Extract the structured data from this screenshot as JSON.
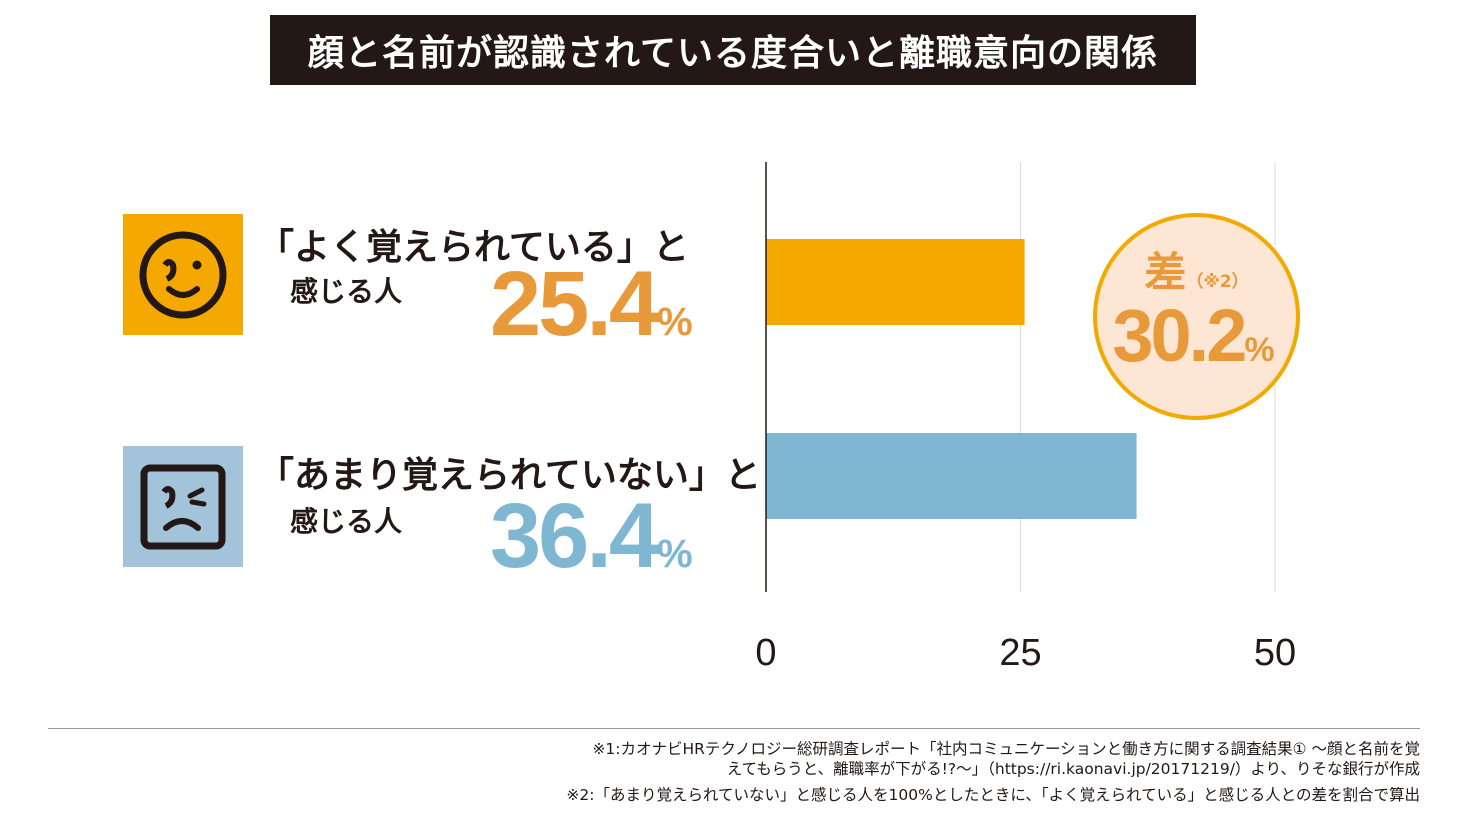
{
  "title": "顔と名前が認識されている度合いと離職意向の関係",
  "categories": [
    {
      "label": "「よく覚えられている」と",
      "sub": "感じる人",
      "value_text": "25.4",
      "unit": "%",
      "icon": "smiling-face-icon"
    },
    {
      "label": "「あまり覚えられていない」と",
      "sub": "感じる人",
      "value_text": "36.4",
      "unit": "%",
      "icon": "frowning-face-icon"
    }
  ],
  "difference": {
    "label": "差",
    "note": "（※2）",
    "value_text": "30.2",
    "unit": "%"
  },
  "footnotes": [
    "※1:カオナビHRテクノロジー総研調査レポート「社内コミュニケーションと働き方に関する調査結果① ～顔と名前を覚",
    "えてもらうと、離職率が下がる!?～」（https://ri.kaonavi.jp/20171219/）より、りそな銀行が作成",
    "※2:「あまり覚えられていない」と感じる人を100%としたときに、「よく覚えられている」と感じる人との差を割合で算出"
  ],
  "chart_data": {
    "type": "bar",
    "orientation": "horizontal",
    "categories": [
      "「よく覚えられている」と感じる人",
      "「あまり覚えられていない」と感じる人"
    ],
    "values": [
      25.4,
      36.4
    ],
    "unit": "%",
    "xlim": [
      0,
      50
    ],
    "ticks": [
      0,
      25,
      50
    ],
    "tick_labels": [
      "0",
      "25",
      "50"
    ],
    "grid": true,
    "colors": [
      "#f5a800",
      "#7fb7d3"
    ],
    "label_colors": [
      "#e8993a",
      "#7fb7d3"
    ],
    "icon_box_colors": [
      "#f5a800",
      "#a2c3d9"
    ]
  }
}
